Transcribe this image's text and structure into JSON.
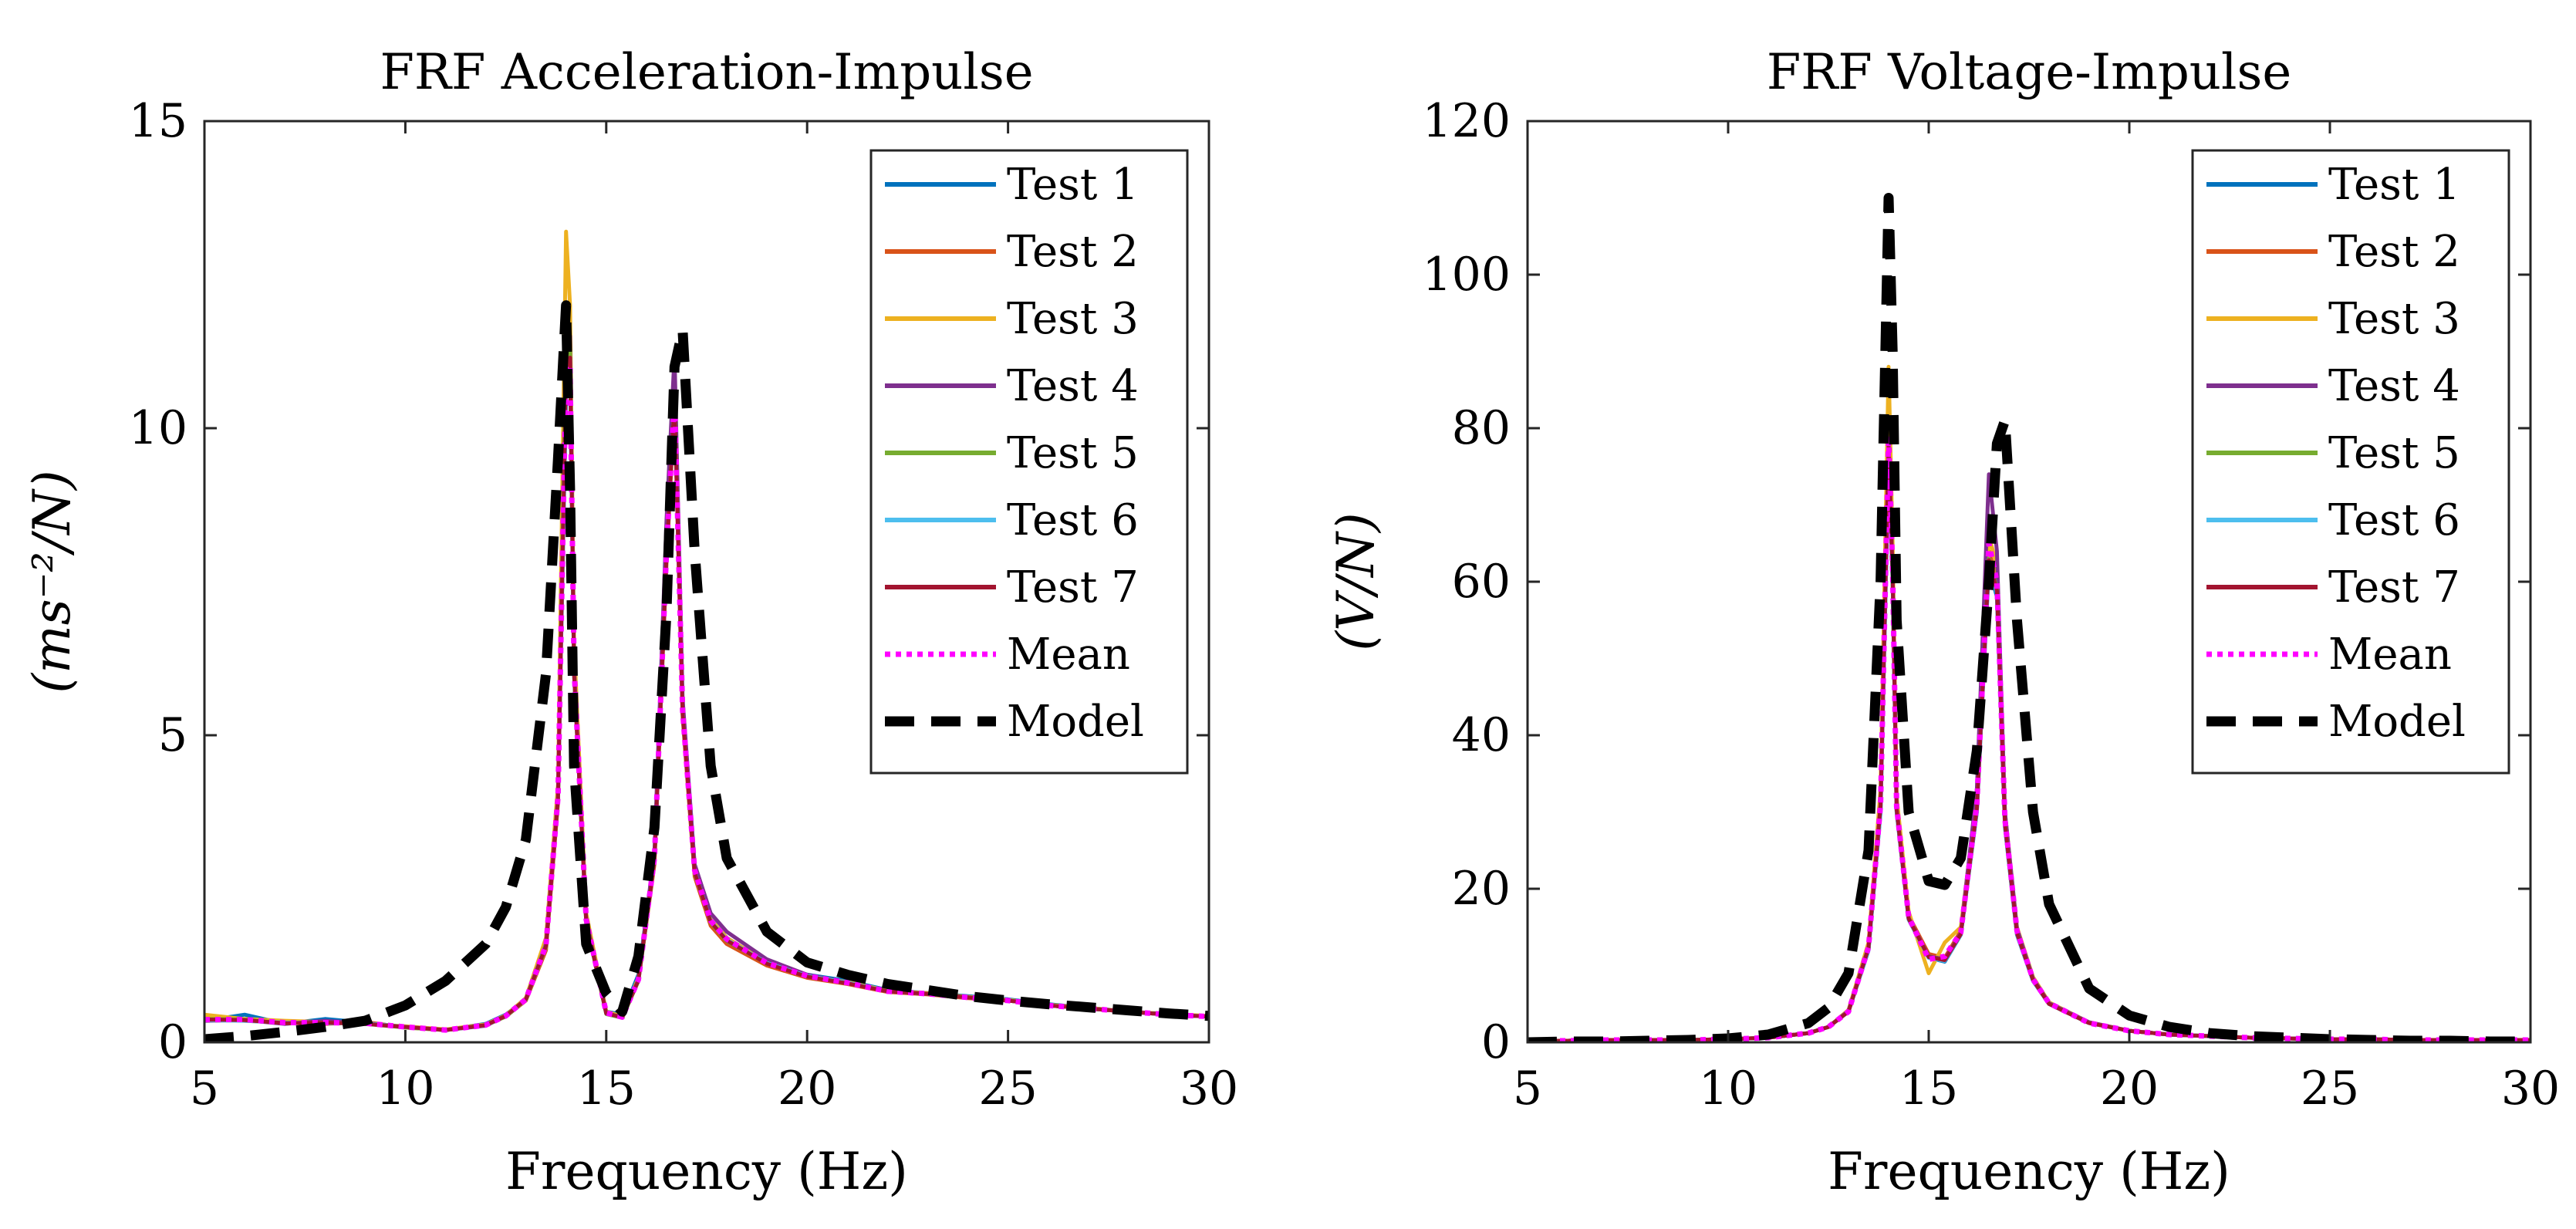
{
  "chart_data": [
    {
      "type": "line",
      "title": "FRF Acceleration-Impulse",
      "xlabel": "Frequency (Hz)",
      "ylabel": "(ms⁻²/N)",
      "xlim": [
        5,
        30
      ],
      "ylim": [
        0,
        15
      ],
      "xticks": [
        "5",
        "10",
        "15",
        "20",
        "25",
        "30"
      ],
      "yticks": [
        "0",
        "5",
        "10",
        "15"
      ],
      "legend_position": "top-right",
      "x": [
        5,
        6,
        7,
        8,
        9,
        10,
        11,
        12,
        12.5,
        13,
        13.5,
        13.8,
        14.0,
        14.1,
        14.2,
        14.5,
        15.0,
        15.4,
        15.8,
        16.2,
        16.5,
        16.7,
        16.9,
        17.2,
        17.6,
        18,
        19,
        20,
        21,
        22,
        23,
        24,
        25,
        26,
        27,
        28,
        29,
        30
      ],
      "series": [
        {
          "name": "Test 1",
          "color": "#0072BD",
          "style": "solid",
          "values": [
            0.35,
            0.45,
            0.3,
            0.38,
            0.32,
            0.25,
            0.2,
            0.3,
            0.45,
            0.7,
            1.6,
            4.0,
            10.5,
            11.0,
            6.0,
            2.0,
            0.5,
            0.45,
            1.1,
            3.0,
            8.0,
            10.6,
            5.5,
            2.8,
            2.0,
            1.7,
            1.3,
            1.1,
            1.0,
            0.85,
            0.8,
            0.75,
            0.7,
            0.62,
            0.56,
            0.5,
            0.46,
            0.42
          ]
        },
        {
          "name": "Test 2",
          "color": "#D95319",
          "style": "solid",
          "values": [
            0.4,
            0.35,
            0.32,
            0.3,
            0.33,
            0.24,
            0.2,
            0.28,
            0.42,
            0.68,
            1.5,
            3.9,
            10.8,
            11.2,
            6.2,
            2.0,
            0.48,
            0.4,
            1.0,
            2.9,
            7.8,
            10.4,
            5.3,
            2.7,
            1.9,
            1.6,
            1.25,
            1.05,
            0.95,
            0.82,
            0.78,
            0.72,
            0.68,
            0.6,
            0.55,
            0.5,
            0.45,
            0.42
          ]
        },
        {
          "name": "Test 3",
          "color": "#EDB120",
          "style": "solid",
          "values": [
            0.45,
            0.38,
            0.35,
            0.33,
            0.3,
            0.26,
            0.21,
            0.29,
            0.44,
            0.72,
            1.7,
            4.2,
            13.2,
            12.0,
            6.5,
            2.1,
            0.5,
            0.42,
            1.05,
            3.0,
            8.1,
            10.8,
            5.4,
            2.8,
            2.0,
            1.7,
            1.3,
            1.08,
            0.98,
            0.84,
            0.8,
            0.74,
            0.69,
            0.61,
            0.56,
            0.5,
            0.46,
            0.43
          ]
        },
        {
          "name": "Test 4",
          "color": "#7E2F8E",
          "style": "solid",
          "values": [
            0.35,
            0.36,
            0.3,
            0.35,
            0.31,
            0.25,
            0.2,
            0.27,
            0.43,
            0.7,
            1.6,
            4.0,
            11.0,
            11.5,
            6.1,
            2.0,
            0.47,
            0.41,
            1.02,
            3.1,
            8.5,
            11.2,
            5.6,
            2.9,
            2.1,
            1.8,
            1.35,
            1.1,
            0.97,
            0.83,
            0.79,
            0.73,
            0.68,
            0.6,
            0.55,
            0.5,
            0.45,
            0.42
          ]
        },
        {
          "name": "Test 5",
          "color": "#77AC30",
          "style": "solid",
          "values": [
            0.38,
            0.37,
            0.31,
            0.32,
            0.3,
            0.24,
            0.2,
            0.28,
            0.42,
            0.69,
            1.55,
            3.95,
            11.5,
            11.3,
            6.0,
            1.95,
            0.46,
            0.4,
            1.0,
            2.95,
            7.9,
            10.5,
            5.35,
            2.75,
            1.95,
            1.65,
            1.28,
            1.07,
            0.96,
            0.83,
            0.79,
            0.73,
            0.68,
            0.6,
            0.55,
            0.5,
            0.45,
            0.42
          ]
        },
        {
          "name": "Test 6",
          "color": "#4DBEEE",
          "style": "solid",
          "values": [
            0.36,
            0.35,
            0.32,
            0.31,
            0.31,
            0.25,
            0.2,
            0.28,
            0.43,
            0.7,
            1.58,
            3.98,
            10.7,
            11.1,
            6.05,
            1.98,
            0.47,
            0.41,
            1.01,
            2.98,
            7.95,
            10.5,
            5.4,
            2.78,
            1.97,
            1.67,
            1.29,
            1.08,
            0.97,
            0.83,
            0.79,
            0.73,
            0.68,
            0.6,
            0.55,
            0.5,
            0.45,
            0.42
          ]
        },
        {
          "name": "Test 7",
          "color": "#A2142F",
          "style": "solid",
          "values": [
            0.37,
            0.36,
            0.31,
            0.32,
            0.3,
            0.25,
            0.2,
            0.28,
            0.43,
            0.7,
            1.57,
            3.97,
            10.9,
            11.15,
            6.02,
            1.97,
            0.47,
            0.41,
            1.01,
            2.97,
            7.92,
            10.48,
            5.38,
            2.77,
            1.96,
            1.66,
            1.28,
            1.07,
            0.96,
            0.83,
            0.79,
            0.73,
            0.68,
            0.6,
            0.55,
            0.5,
            0.45,
            0.42
          ]
        },
        {
          "name": "Mean",
          "color": "#FF00FF",
          "style": "dotted",
          "values": [
            0.37,
            0.37,
            0.32,
            0.32,
            0.31,
            0.25,
            0.2,
            0.28,
            0.43,
            0.7,
            1.58,
            4.0,
            11.0,
            11.0,
            6.1,
            2.0,
            0.48,
            0.41,
            1.02,
            3.0,
            8.0,
            10.5,
            5.4,
            2.8,
            1.98,
            1.68,
            1.29,
            1.08,
            0.97,
            0.83,
            0.79,
            0.73,
            0.68,
            0.6,
            0.55,
            0.5,
            0.45,
            0.42
          ]
        },
        {
          "name": "Model",
          "color": "#000000",
          "style": "dashed",
          "values": [
            0.05,
            0.1,
            0.17,
            0.25,
            0.35,
            0.6,
            1.0,
            1.6,
            2.2,
            3.3,
            6.0,
            9.5,
            12.0,
            9.0,
            4.5,
            1.6,
            0.8,
            0.5,
            1.4,
            3.5,
            7.0,
            11.0,
            11.6,
            8.0,
            4.5,
            3.0,
            1.8,
            1.3,
            1.1,
            0.95,
            0.85,
            0.75,
            0.68,
            0.62,
            0.57,
            0.52,
            0.47,
            0.43
          ]
        }
      ]
    },
    {
      "type": "line",
      "title": "FRF Voltage-Impulse",
      "xlabel": "Frequency (Hz)",
      "ylabel": "(V/N)",
      "xlim": [
        5,
        30
      ],
      "ylim": [
        0,
        120
      ],
      "xticks": [
        "5",
        "10",
        "15",
        "20",
        "25",
        "30"
      ],
      "yticks": [
        "0",
        "20",
        "40",
        "60",
        "80",
        "100",
        "120"
      ],
      "legend_position": "top-right",
      "x": [
        5,
        6,
        7,
        8,
        9,
        10,
        11,
        12,
        12.5,
        13,
        13.5,
        13.8,
        14.0,
        14.1,
        14.2,
        14.5,
        15.0,
        15.4,
        15.8,
        16.2,
        16.5,
        16.7,
        16.9,
        17.2,
        17.6,
        18,
        19,
        20,
        21,
        22,
        23,
        24,
        25,
        26,
        27,
        28,
        29,
        30
      ],
      "series": [
        {
          "name": "Test 1",
          "color": "#0072BD",
          "style": "solid",
          "values": [
            0.2,
            0.2,
            0.3,
            0.3,
            0.3,
            0.4,
            0.6,
            1.2,
            2.0,
            4.0,
            12.0,
            30.0,
            76.0,
            60.0,
            30.0,
            16.0,
            11.0,
            10.5,
            14.0,
            30.0,
            62.0,
            58.0,
            28.0,
            14.0,
            8.0,
            5.0,
            2.5,
            1.5,
            1.0,
            0.8,
            0.6,
            0.5,
            0.4,
            0.4,
            0.3,
            0.3,
            0.3,
            0.3
          ]
        },
        {
          "name": "Test 2",
          "color": "#D95319",
          "style": "solid",
          "values": [
            0.2,
            0.2,
            0.3,
            0.3,
            0.3,
            0.4,
            0.6,
            1.2,
            2.0,
            4.0,
            12.5,
            31.0,
            80.0,
            62.0,
            31.0,
            16.5,
            11.5,
            11.0,
            14.5,
            31.0,
            64.0,
            60.0,
            29.0,
            14.5,
            8.2,
            5.1,
            2.6,
            1.5,
            1.0,
            0.8,
            0.6,
            0.5,
            0.4,
            0.4,
            0.3,
            0.3,
            0.3,
            0.3
          ]
        },
        {
          "name": "Test 3",
          "color": "#EDB120",
          "style": "solid",
          "values": [
            0.2,
            0.2,
            0.3,
            0.3,
            0.3,
            0.4,
            0.6,
            1.2,
            2.0,
            4.2,
            13.0,
            33.0,
            88.0,
            65.0,
            32.0,
            17.0,
            9.0,
            13.0,
            15.0,
            32.0,
            66.0,
            62.0,
            30.0,
            15.0,
            8.5,
            5.2,
            2.6,
            1.5,
            1.0,
            0.8,
            0.6,
            0.5,
            0.4,
            0.4,
            0.3,
            0.3,
            0.3,
            0.3
          ]
        },
        {
          "name": "Test 4",
          "color": "#7E2F8E",
          "style": "solid",
          "values": [
            0.2,
            0.2,
            0.3,
            0.3,
            0.3,
            0.4,
            0.6,
            1.2,
            2.0,
            4.1,
            12.4,
            31.0,
            78.0,
            61.0,
            30.5,
            16.2,
            11.2,
            10.8,
            14.2,
            33.0,
            74.0,
            64.0,
            30.0,
            14.8,
            8.3,
            5.1,
            2.6,
            1.5,
            1.0,
            0.8,
            0.6,
            0.5,
            0.4,
            0.4,
            0.3,
            0.3,
            0.3,
            0.3
          ]
        },
        {
          "name": "Test 5",
          "color": "#77AC30",
          "style": "solid",
          "values": [
            0.2,
            0.2,
            0.3,
            0.3,
            0.3,
            0.4,
            0.6,
            1.2,
            2.0,
            4.0,
            12.2,
            30.5,
            77.0,
            60.5,
            30.2,
            16.1,
            11.1,
            10.7,
            14.1,
            30.5,
            63.0,
            59.0,
            28.5,
            14.2,
            8.1,
            5.0,
            2.5,
            1.5,
            1.0,
            0.8,
            0.6,
            0.5,
            0.4,
            0.4,
            0.3,
            0.3,
            0.3,
            0.3
          ]
        },
        {
          "name": "Test 6",
          "color": "#4DBEEE",
          "style": "solid",
          "values": [
            0.2,
            0.2,
            0.3,
            0.3,
            0.3,
            0.4,
            0.6,
            1.2,
            2.0,
            4.0,
            12.1,
            30.2,
            76.5,
            60.2,
            30.1,
            16.0,
            11.0,
            10.6,
            14.0,
            30.2,
            62.5,
            58.5,
            28.2,
            14.1,
            8.0,
            5.0,
            2.5,
            1.5,
            1.0,
            0.8,
            0.6,
            0.5,
            0.4,
            0.4,
            0.3,
            0.3,
            0.3,
            0.3
          ]
        },
        {
          "name": "Test 7",
          "color": "#A2142F",
          "style": "solid",
          "values": [
            0.2,
            0.2,
            0.3,
            0.3,
            0.3,
            0.4,
            0.6,
            1.2,
            2.0,
            4.0,
            12.3,
            30.8,
            77.5,
            60.8,
            30.3,
            16.1,
            11.1,
            10.7,
            14.1,
            30.4,
            62.8,
            58.8,
            28.4,
            14.2,
            8.1,
            5.0,
            2.5,
            1.5,
            1.0,
            0.8,
            0.6,
            0.5,
            0.4,
            0.4,
            0.3,
            0.3,
            0.3,
            0.3
          ]
        },
        {
          "name": "Mean",
          "color": "#FF00FF",
          "style": "dotted",
          "values": [
            0.2,
            0.2,
            0.3,
            0.3,
            0.3,
            0.4,
            0.6,
            1.2,
            2.0,
            4.0,
            12.4,
            31.0,
            79.0,
            61.5,
            30.7,
            16.3,
            10.8,
            11.2,
            14.3,
            31.0,
            65.0,
            60.0,
            29.0,
            14.5,
            8.2,
            5.1,
            2.5,
            1.5,
            1.0,
            0.8,
            0.6,
            0.5,
            0.4,
            0.4,
            0.3,
            0.3,
            0.3,
            0.3
          ]
        },
        {
          "name": "Model",
          "color": "#000000",
          "style": "dashed",
          "values": [
            0.0,
            0.1,
            0.1,
            0.2,
            0.3,
            0.5,
            1.0,
            2.5,
            4.5,
            9.0,
            25.0,
            60.0,
            110.0,
            90.0,
            55.0,
            30.0,
            21.0,
            20.5,
            24.0,
            38.0,
            60.0,
            78.0,
            81.0,
            55.0,
            30.0,
            18.0,
            7.0,
            3.5,
            2.0,
            1.2,
            0.8,
            0.6,
            0.4,
            0.3,
            0.2,
            0.2,
            0.1,
            0.1
          ]
        }
      ]
    }
  ]
}
